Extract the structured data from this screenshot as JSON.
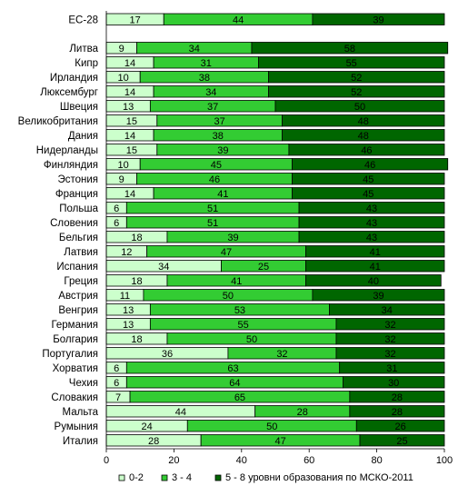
{
  "chart_data": {
    "type": "bar",
    "orientation": "horizontal",
    "stacked": true,
    "percent_scale": true,
    "categories": [
      "ЕС-28",
      "Литва",
      "Кипр",
      "Ирландия",
      "Люксембург",
      "Швеция",
      "Великобритания",
      "Дания",
      "Нидерланды",
      "Финляндия",
      "Эстония",
      "Франция",
      "Польша",
      "Словения",
      "Бельгия",
      "Латвия",
      "Испания",
      "Греция",
      "Австрия",
      "Венгрия",
      "Германия",
      "Болгария",
      "Португалия",
      "Хорватия",
      "Чехия",
      "Словакия",
      "Мальта",
      "Румыния",
      "Италия"
    ],
    "series": [
      {
        "name": "0-2",
        "color": "#ccffcc",
        "values": [
          17,
          9,
          14,
          10,
          14,
          13,
          15,
          14,
          15,
          10,
          9,
          14,
          6,
          6,
          18,
          12,
          34,
          18,
          11,
          13,
          13,
          18,
          36,
          6,
          6,
          7,
          44,
          24,
          28
        ]
      },
      {
        "name": "3 - 4",
        "color": "#33cc33",
        "values": [
          44,
          34,
          31,
          38,
          34,
          37,
          37,
          38,
          39,
          45,
          46,
          41,
          51,
          51,
          39,
          47,
          25,
          41,
          50,
          53,
          55,
          50,
          32,
          63,
          64,
          65,
          28,
          50,
          47
        ]
      },
      {
        "name": "5 - 8 уровни образования по МСКО-2011",
        "color": "#006600",
        "values": [
          39,
          58,
          55,
          52,
          52,
          50,
          48,
          48,
          46,
          46,
          45,
          45,
          43,
          43,
          43,
          41,
          41,
          40,
          39,
          34,
          32,
          32,
          32,
          31,
          30,
          28,
          28,
          26,
          25
        ]
      }
    ],
    "xlim": [
      0,
      100
    ],
    "xticks": [
      0,
      20,
      40,
      60,
      80,
      100
    ],
    "title": "",
    "xlabel": "",
    "ylabel": "",
    "grid": false,
    "legend": "bottom"
  }
}
